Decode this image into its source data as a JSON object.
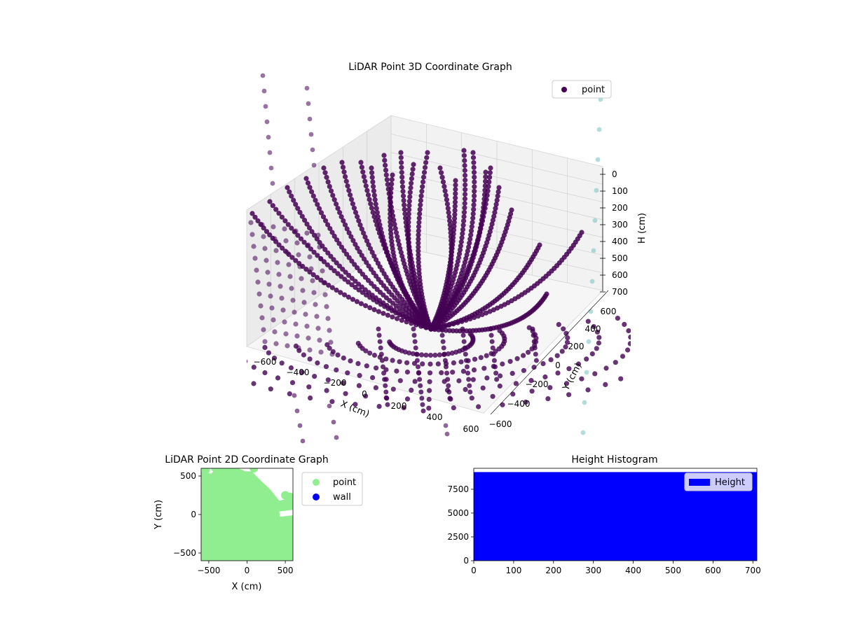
{
  "chart_data": [
    {
      "type": "scatter",
      "projection": "3d",
      "title": "LiDAR Point 3D Coordinate Graph",
      "xlabel": "X (cm)",
      "ylabel": "Y (cm)",
      "zlabel": "H (cm)",
      "xticks": [
        "−600",
        "−400",
        "−200",
        "0",
        "200",
        "400",
        "600"
      ],
      "yticks": [
        "600",
        "400",
        "200",
        "0",
        "−200",
        "−400",
        "−600"
      ],
      "zticks": [
        "0",
        "100",
        "200",
        "300",
        "400",
        "500",
        "600",
        "700"
      ],
      "xlim": [
        -600,
        600
      ],
      "ylim": [
        -600,
        600
      ],
      "zlim": [
        0,
        700
      ],
      "z_inverted": true,
      "grid": true,
      "legend": {
        "position": "top-right",
        "entries": [
          "point"
        ]
      },
      "series": [
        {
          "name": "point",
          "color": "#440154",
          "marker": "circle"
        }
      ],
      "colors": {
        "point": "#440154",
        "outlier": "#7fc6c2",
        "pane": "#f2f2f2"
      }
    },
    {
      "type": "scatter",
      "title": "LiDAR Point 2D Coordinate Graph",
      "xlabel": "X (cm)",
      "ylabel": "Y (cm)",
      "xticks": [
        "−500",
        "0",
        "500"
      ],
      "yticks": [
        "500",
        "0",
        "−500"
      ],
      "xlim": [
        -600,
        600
      ],
      "ylim": [
        -600,
        600
      ],
      "legend": {
        "position": "right-outside",
        "entries": [
          "point",
          "wall"
        ]
      },
      "series": [
        {
          "name": "point",
          "color": "#90ee90"
        },
        {
          "name": "wall",
          "color": "#0000ff"
        }
      ]
    },
    {
      "type": "bar",
      "title": "Height Histogram",
      "xticks": [
        "0",
        "100",
        "200",
        "300",
        "400",
        "500",
        "600",
        "700"
      ],
      "yticks": [
        "0",
        "2500",
        "5000",
        "7500"
      ],
      "xlim": [
        0,
        710
      ],
      "ylim": [
        0,
        9700
      ],
      "bin_count_approx": 9300,
      "legend": {
        "position": "top-right",
        "entries": [
          "Height"
        ]
      },
      "series": [
        {
          "name": "Height",
          "color": "#0000ff"
        }
      ]
    }
  ]
}
